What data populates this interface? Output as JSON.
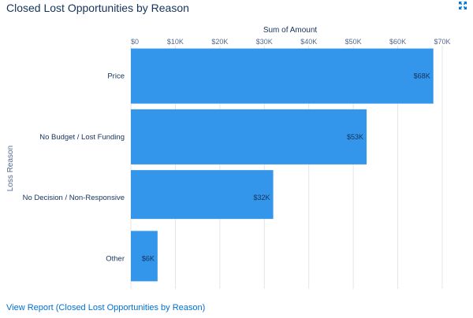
{
  "header": {
    "title": "Closed Lost Opportunities by Reason",
    "expand_icon": "expand-icon"
  },
  "footer": {
    "link_label": "View Report (Closed Lost Opportunities by Reason)"
  },
  "colors": {
    "bar": "#3396ea",
    "grid": "#e5e5e5",
    "link": "#0070d2",
    "text": "#16325c"
  },
  "chart_data": {
    "type": "bar",
    "orientation": "horizontal",
    "title": "Closed Lost Opportunities by Reason",
    "xlabel": "Sum of Amount",
    "ylabel": "Loss Reason",
    "xlim": [
      0,
      70000
    ],
    "x_ticks": [
      0,
      10000,
      20000,
      30000,
      40000,
      50000,
      60000,
      70000
    ],
    "x_tick_labels": [
      "$0",
      "$10K",
      "$20K",
      "$30K",
      "$40K",
      "$50K",
      "$60K",
      "$70K"
    ],
    "categories": [
      "Price",
      "No Budget / Lost Funding",
      "No Decision / Non-Responsive",
      "Other"
    ],
    "values": [
      68000,
      53000,
      32000,
      6000
    ],
    "value_labels": [
      "$68K",
      "$53K",
      "$32K",
      "$6K"
    ],
    "grid": true,
    "legend": "none"
  }
}
